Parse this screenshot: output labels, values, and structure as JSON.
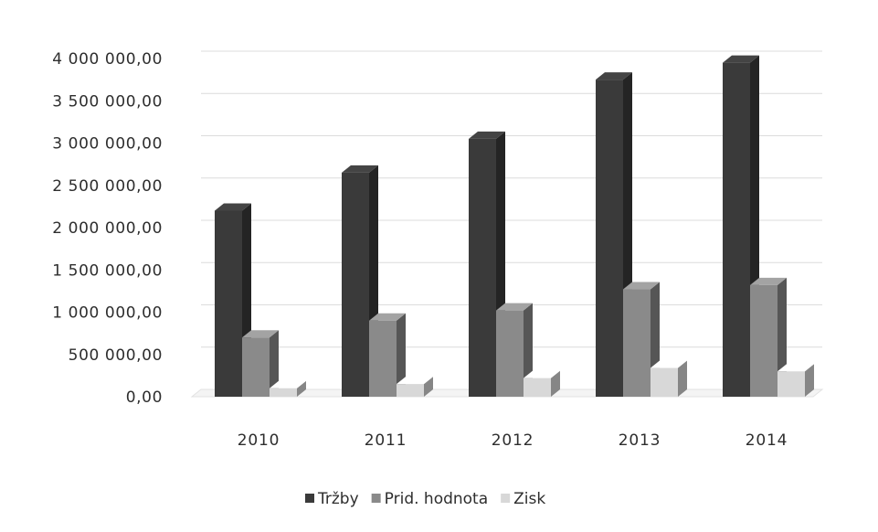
{
  "chart_data": {
    "type": "bar",
    "style": "3d-clustered-column",
    "categories": [
      "2010",
      "2011",
      "2012",
      "2013",
      "2014"
    ],
    "series": [
      {
        "name": "Tržby",
        "color": "#3a3a3a",
        "values": [
          2200000,
          2650000,
          3050000,
          3750000,
          3950000
        ]
      },
      {
        "name": "Prid. hodnota",
        "color": "#8a8a8a",
        "values": [
          700000,
          900000,
          1020000,
          1270000,
          1320000
        ]
      },
      {
        "name": "Zisk",
        "color": "#d8d8d8",
        "values": [
          100000,
          150000,
          220000,
          340000,
          300000
        ]
      }
    ],
    "ylim": [
      0,
      4000000
    ],
    "yticks": [
      0,
      500000,
      1000000,
      1500000,
      2000000,
      2500000,
      3000000,
      3500000,
      4000000
    ],
    "ytick_labels": [
      "0,00",
      "500 000,00",
      "1 000 000,00",
      "1 500 000,00",
      "2 000 000,00",
      "2 500 000,00",
      "3 000 000,00",
      "3 500 000,00",
      "4 000 000,00"
    ],
    "title": "",
    "xlabel": "",
    "ylabel": "",
    "grid": true,
    "legend_position": "bottom"
  }
}
